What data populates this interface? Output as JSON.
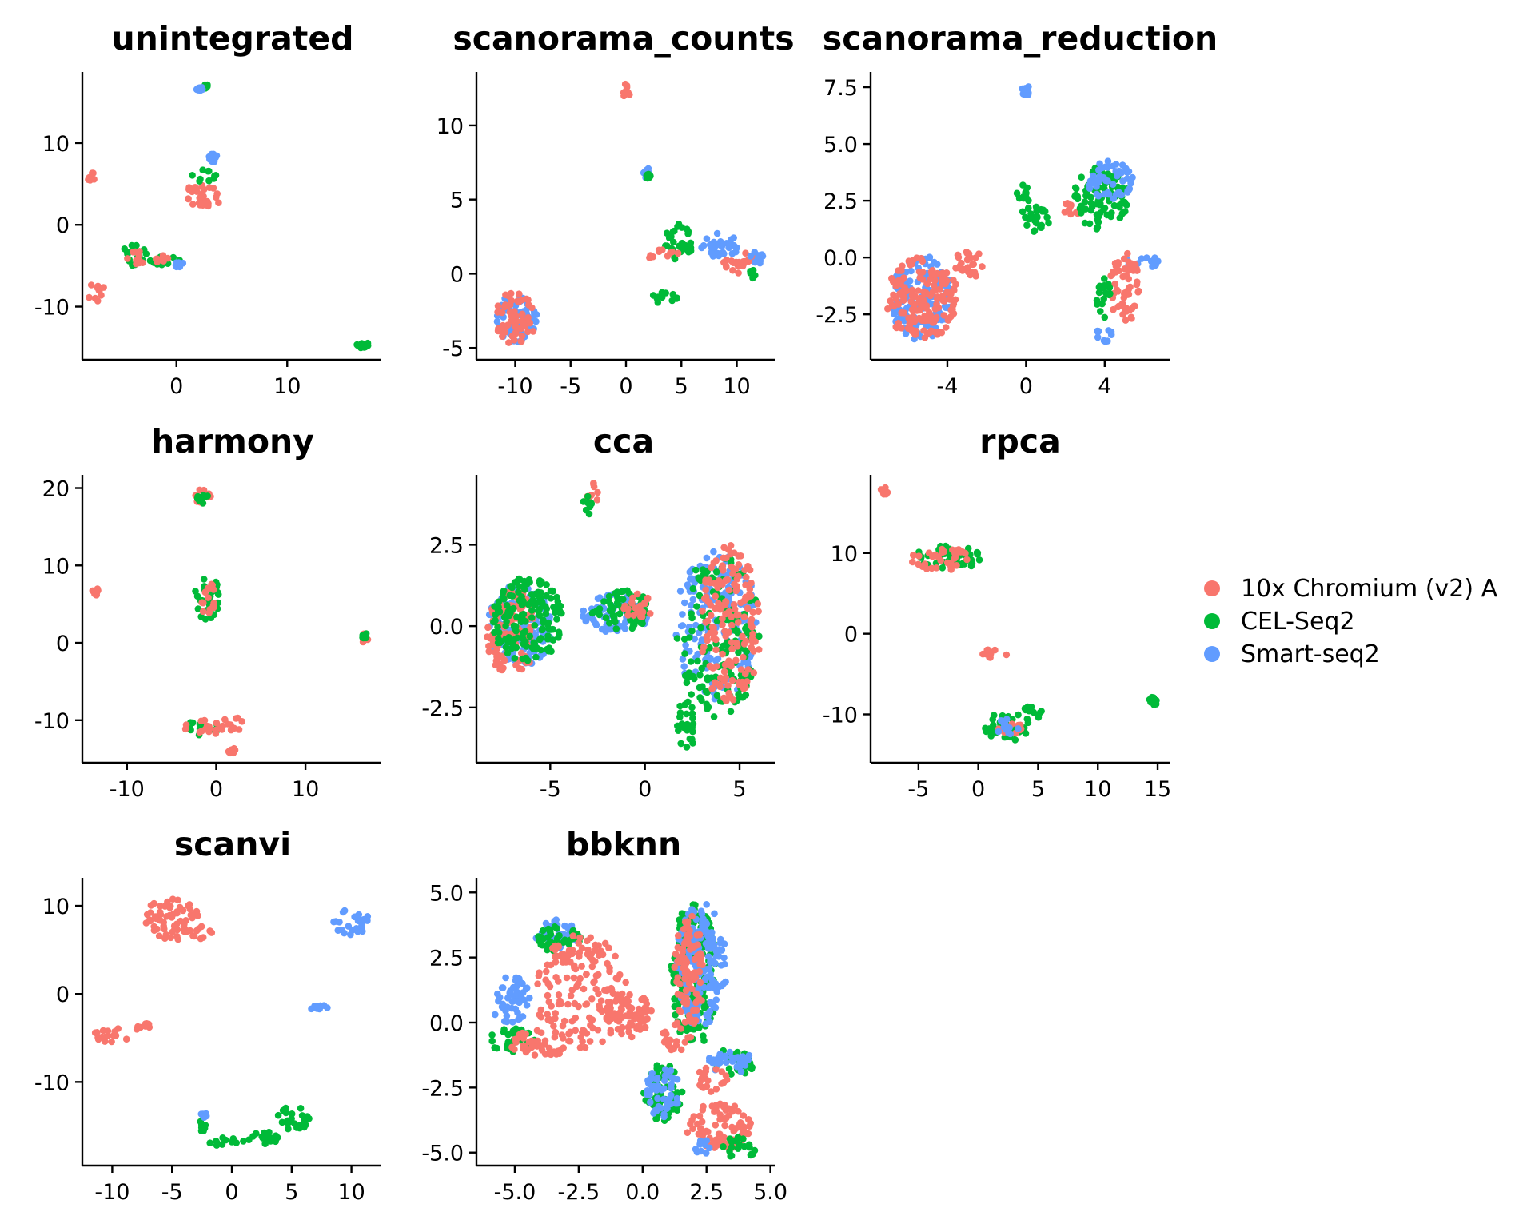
{
  "colors": {
    "10x Chromium (v2) A": "#F8766D",
    "CEL-Seq2": "#00BA38",
    "Smart-seq2": "#619CFF"
  },
  "legend": {
    "entries": [
      {
        "label": "10x Chromium (v2) A",
        "color": "#F8766D"
      },
      {
        "label": "CEL-Seq2",
        "color": "#00BA38"
      },
      {
        "label": "Smart-seq2",
        "color": "#619CFF"
      }
    ]
  },
  "chart_data": [
    {
      "type": "scatter",
      "title": "unintegrated",
      "xlim": [
        -8.5,
        18.5
      ],
      "ylim": [
        -16.5,
        18.5
      ],
      "xticks": [
        0,
        10
      ],
      "yticks": [
        10,
        0,
        -10
      ],
      "xtick_labels": [
        "0",
        "10"
      ],
      "ytick_labels": [
        "10",
        "0",
        "-10"
      ],
      "clusters": [
        {
          "series": "10x Chromium (v2) A",
          "cx": -7.7,
          "cy": 5.9,
          "rx": 0.4,
          "ry": 0.5
        },
        {
          "series": "10x Chromium (v2) A",
          "cx": 2.5,
          "cy": 3.6,
          "rx": 1.6,
          "ry": 2.0
        },
        {
          "series": "CEL-Seq2",
          "cx": 2.6,
          "cy": 6.0,
          "rx": 1.2,
          "ry": 0.8
        },
        {
          "series": "Smart-seq2",
          "cx": 3.3,
          "cy": 8.2,
          "rx": 0.4,
          "ry": 0.5
        },
        {
          "series": "CEL-Seq2",
          "cx": 2.8,
          "cy": 16.9,
          "rx": 0.6,
          "ry": 0.3
        },
        {
          "series": "Smart-seq2",
          "cx": 2.1,
          "cy": 16.6,
          "rx": 0.3,
          "ry": 0.3
        },
        {
          "series": "10x Chromium (v2) A",
          "cx": -7.2,
          "cy": -8.3,
          "rx": 0.8,
          "ry": 1.2
        },
        {
          "series": "CEL-Seq2",
          "cx": -3.6,
          "cy": -3.8,
          "rx": 1.4,
          "ry": 1.5
        },
        {
          "series": "CEL-Seq2",
          "cx": -1.0,
          "cy": -4.4,
          "rx": 1.6,
          "ry": 0.5
        },
        {
          "series": "10x Chromium (v2) A",
          "cx": -3.5,
          "cy": -4.0,
          "rx": 1.0,
          "ry": 0.8
        },
        {
          "series": "10x Chromium (v2) A",
          "cx": -1.2,
          "cy": -4.2,
          "rx": 0.8,
          "ry": 0.5
        },
        {
          "series": "Smart-seq2",
          "cx": 0.2,
          "cy": -4.8,
          "rx": 0.4,
          "ry": 0.4
        },
        {
          "series": "CEL-Seq2",
          "cx": 16.8,
          "cy": -14.7,
          "rx": 0.6,
          "ry": 0.4
        }
      ]
    },
    {
      "type": "scatter",
      "title": "scanorama_counts",
      "xlim": [
        -13.5,
        13.5
      ],
      "ylim": [
        -5.8,
        13.5
      ],
      "xticks": [
        -10,
        -5,
        0,
        5,
        10
      ],
      "yticks": [
        10,
        5,
        0,
        -5
      ],
      "xtick_labels": [
        "-10",
        "-5",
        "0",
        "5",
        "10"
      ],
      "ytick_labels": [
        "10",
        "5",
        "0",
        "-5"
      ],
      "clusters": [
        {
          "series": "Smart-seq2",
          "cx": -9.8,
          "cy": -3.0,
          "rx": 1.9,
          "ry": 1.7
        },
        {
          "series": "10x Chromium (v2) A",
          "cx": -10.0,
          "cy": -3.0,
          "rx": 1.9,
          "ry": 1.8
        },
        {
          "series": "10x Chromium (v2) A",
          "cx": 0.0,
          "cy": 12.4,
          "rx": 0.4,
          "ry": 0.5
        },
        {
          "series": "Smart-seq2",
          "cx": 1.9,
          "cy": 6.8,
          "rx": 0.3,
          "ry": 0.4
        },
        {
          "series": "CEL-Seq2",
          "cx": 2.0,
          "cy": 6.6,
          "rx": 0.2,
          "ry": 0.2
        },
        {
          "series": "CEL-Seq2",
          "cx": 4.8,
          "cy": 2.2,
          "rx": 1.3,
          "ry": 1.3
        },
        {
          "series": "Smart-seq2",
          "cx": 8.5,
          "cy": 1.9,
          "rx": 1.8,
          "ry": 0.9
        },
        {
          "series": "10x Chromium (v2) A",
          "cx": 3.3,
          "cy": 1.3,
          "rx": 1.5,
          "ry": 0.4
        },
        {
          "series": "10x Chromium (v2) A",
          "cx": 10.2,
          "cy": 0.8,
          "rx": 1.5,
          "ry": 0.8
        },
        {
          "series": "Smart-seq2",
          "cx": 11.8,
          "cy": 1.0,
          "rx": 0.7,
          "ry": 0.5
        },
        {
          "series": "CEL-Seq2",
          "cx": 3.6,
          "cy": -1.6,
          "rx": 1.6,
          "ry": 0.4
        },
        {
          "series": "CEL-Seq2",
          "cx": 11.4,
          "cy": 0.0,
          "rx": 0.3,
          "ry": 0.3
        }
      ]
    },
    {
      "type": "scatter",
      "title": "scanorama_reduction",
      "xlim": [
        -7.9,
        7.3
      ],
      "ylim": [
        -4.5,
        8.1
      ],
      "xticks": [
        -4,
        0,
        4
      ],
      "yticks": [
        7.5,
        5.0,
        2.5,
        0.0,
        -2.5
      ],
      "xtick_labels": [
        "-4",
        "0",
        "4"
      ],
      "ytick_labels": [
        "7.5",
        "5.0",
        "2.5",
        "0.0",
        "-2.5"
      ],
      "clusters": [
        {
          "series": "Smart-seq2",
          "cx": -5.3,
          "cy": -1.8,
          "rx": 1.6,
          "ry": 1.9
        },
        {
          "series": "10x Chromium (v2) A",
          "cx": -5.3,
          "cy": -1.8,
          "rx": 1.9,
          "ry": 1.8
        },
        {
          "series": "10x Chromium (v2) A",
          "cx": -2.8,
          "cy": -0.3,
          "rx": 1.0,
          "ry": 0.6
        },
        {
          "series": "CEL-Seq2",
          "cx": 0.4,
          "cy": 1.6,
          "rx": 0.8,
          "ry": 0.7
        },
        {
          "series": "CEL-Seq2",
          "cx": -0.1,
          "cy": 2.7,
          "rx": 0.4,
          "ry": 0.5
        },
        {
          "series": "Smart-seq2",
          "cx": 0.0,
          "cy": 7.35,
          "rx": 0.25,
          "ry": 0.2
        },
        {
          "series": "10x Chromium (v2) A",
          "cx": 2.3,
          "cy": 2.2,
          "rx": 0.7,
          "ry": 0.3
        },
        {
          "series": "CEL-Seq2",
          "cx": 3.8,
          "cy": 2.6,
          "rx": 1.4,
          "ry": 1.4
        },
        {
          "series": "Smart-seq2",
          "cx": 4.3,
          "cy": 3.4,
          "rx": 1.2,
          "ry": 0.9
        },
        {
          "series": "Smart-seq2",
          "cx": 6.0,
          "cy": -0.2,
          "rx": 0.9,
          "ry": 0.3
        },
        {
          "series": "10x Chromium (v2) A",
          "cx": 5.0,
          "cy": -1.3,
          "rx": 0.8,
          "ry": 1.6
        },
        {
          "series": "CEL-Seq2",
          "cx": 4.0,
          "cy": -1.8,
          "rx": 0.4,
          "ry": 0.9
        },
        {
          "series": "Smart-seq2",
          "cx": 4.0,
          "cy": -3.4,
          "rx": 0.5,
          "ry": 0.3
        }
      ]
    },
    {
      "type": "scatter",
      "title": "harmony",
      "xlim": [
        -15,
        18.5
      ],
      "ylim": [
        -15.5,
        21.5
      ],
      "xticks": [
        -10,
        0,
        10
      ],
      "yticks": [
        20,
        10,
        0,
        -10
      ],
      "xtick_labels": [
        "-10",
        "0",
        "10"
      ],
      "ytick_labels": [
        "20",
        "10",
        "0",
        "-10"
      ],
      "clusters": [
        {
          "series": "10x Chromium (v2) A",
          "cx": -1.5,
          "cy": 19.0,
          "rx": 1.0,
          "ry": 1.0
        },
        {
          "series": "CEL-Seq2",
          "cx": -1.5,
          "cy": 18.7,
          "rx": 0.6,
          "ry": 0.7
        },
        {
          "series": "CEL-Seq2",
          "cx": -1.0,
          "cy": 6.0,
          "rx": 1.4,
          "ry": 3.0
        },
        {
          "series": "10x Chromium (v2) A",
          "cx": -0.8,
          "cy": 5.5,
          "rx": 1.0,
          "ry": 2.2
        },
        {
          "series": "10x Chromium (v2) A",
          "cx": -13.5,
          "cy": 6.6,
          "rx": 0.4,
          "ry": 0.5
        },
        {
          "series": "10x Chromium (v2) A",
          "cx": 16.6,
          "cy": 0.6,
          "rx": 0.4,
          "ry": 0.7
        },
        {
          "series": "CEL-Seq2",
          "cx": 16.6,
          "cy": 0.9,
          "rx": 0.3,
          "ry": 0.4
        },
        {
          "series": "CEL-Seq2",
          "cx": -1.5,
          "cy": -11.0,
          "rx": 2.0,
          "ry": 1.0
        },
        {
          "series": "10x Chromium (v2) A",
          "cx": -1.5,
          "cy": -11.0,
          "rx": 2.2,
          "ry": 1.0
        },
        {
          "series": "10x Chromium (v2) A",
          "cx": 2.0,
          "cy": -10.5,
          "rx": 1.4,
          "ry": 0.9
        },
        {
          "series": "10x Chromium (v2) A",
          "cx": 1.8,
          "cy": -14.0,
          "rx": 0.4,
          "ry": 0.4
        }
      ]
    },
    {
      "type": "scatter",
      "title": "cca",
      "xlim": [
        -8.9,
        6.9
      ],
      "ylim": [
        -4.2,
        4.6
      ],
      "xticks": [
        -5,
        0,
        5
      ],
      "yticks": [
        2.5,
        0.0,
        -2.5
      ],
      "xtick_labels": [
        "-5",
        "0",
        "5"
      ],
      "ytick_labels": [
        "2.5",
        "0.0",
        "-2.5"
      ],
      "clusters": [
        {
          "series": "10x Chromium (v2) A",
          "cx": -2.7,
          "cy": 4.0,
          "rx": 0.35,
          "ry": 0.4
        },
        {
          "series": "CEL-Seq2",
          "cx": -3.0,
          "cy": 3.8,
          "rx": 0.25,
          "ry": 0.4
        },
        {
          "series": "Smart-seq2",
          "cx": -6.6,
          "cy": 0.0,
          "rx": 1.7,
          "ry": 1.3
        },
        {
          "series": "10x Chromium (v2) A",
          "cx": -7.0,
          "cy": -0.2,
          "rx": 1.4,
          "ry": 1.3
        },
        {
          "series": "CEL-Seq2",
          "cx": -6.2,
          "cy": 0.2,
          "rx": 1.9,
          "ry": 1.3
        },
        {
          "series": "Smart-seq2",
          "cx": -1.5,
          "cy": 0.4,
          "rx": 1.8,
          "ry": 0.6
        },
        {
          "series": "CEL-Seq2",
          "cx": -1.2,
          "cy": 0.5,
          "rx": 1.6,
          "ry": 0.6
        },
        {
          "series": "10x Chromium (v2) A",
          "cx": -0.4,
          "cy": 0.6,
          "rx": 0.8,
          "ry": 0.4
        },
        {
          "series": "Smart-seq2",
          "cx": 3.8,
          "cy": 0.0,
          "rx": 2.2,
          "ry": 2.3
        },
        {
          "series": "CEL-Seq2",
          "cx": 3.9,
          "cy": -0.3,
          "rx": 2.2,
          "ry": 2.5
        },
        {
          "series": "10x Chromium (v2) A",
          "cx": 4.5,
          "cy": 0.0,
          "rx": 1.6,
          "ry": 2.5
        },
        {
          "series": "CEL-Seq2",
          "cx": 2.2,
          "cy": -3.0,
          "rx": 0.5,
          "ry": 0.8
        }
      ]
    },
    {
      "type": "scatter",
      "title": "rpca",
      "xlim": [
        -9,
        16
      ],
      "ylim": [
        -16,
        19.5
      ],
      "xticks": [
        -5,
        0,
        5,
        10,
        15
      ],
      "yticks": [
        10,
        0,
        -10
      ],
      "xtick_labels": [
        "-5",
        "0",
        "5",
        "10",
        "15"
      ],
      "ytick_labels": [
        "10",
        "0",
        "-10"
      ],
      "clusters": [
        {
          "series": "10x Chromium (v2) A",
          "cx": -7.8,
          "cy": 17.7,
          "rx": 0.4,
          "ry": 0.5
        },
        {
          "series": "CEL-Seq2",
          "cx": -2.5,
          "cy": 9.5,
          "rx": 2.8,
          "ry": 1.6
        },
        {
          "series": "10x Chromium (v2) A",
          "cx": -3.2,
          "cy": 9.3,
          "rx": 2.4,
          "ry": 1.5
        },
        {
          "series": "10x Chromium (v2) A",
          "cx": 1.1,
          "cy": -2.5,
          "rx": 1.3,
          "ry": 0.7
        },
        {
          "series": "CEL-Seq2",
          "cx": 2.5,
          "cy": -11.5,
          "rx": 2.0,
          "ry": 1.8
        },
        {
          "series": "CEL-Seq2",
          "cx": 4.5,
          "cy": -9.8,
          "rx": 0.8,
          "ry": 0.9
        },
        {
          "series": "10x Chromium (v2) A",
          "cx": 2.6,
          "cy": -11.6,
          "rx": 1.1,
          "ry": 1.0
        },
        {
          "series": "Smart-seq2",
          "cx": 2.5,
          "cy": -11.5,
          "rx": 1.0,
          "ry": 1.2
        },
        {
          "series": "CEL-Seq2",
          "cx": 14.7,
          "cy": -8.3,
          "rx": 0.4,
          "ry": 0.6
        }
      ]
    },
    {
      "type": "scatter",
      "title": "scanvi",
      "xlim": [
        -12.5,
        12.5
      ],
      "ylim": [
        -19.5,
        13
      ],
      "xticks": [
        -10,
        -5,
        0,
        5,
        10
      ],
      "yticks": [
        10,
        0,
        -10
      ],
      "xtick_labels": [
        "-10",
        "-5",
        "0",
        "5",
        "10"
      ],
      "ytick_labels": [
        "10",
        "0",
        "-10"
      ],
      "clusters": [
        {
          "series": "10x Chromium (v2) A",
          "cx": -5.0,
          "cy": 8.5,
          "rx": 2.2,
          "ry": 2.6
        },
        {
          "series": "10x Chromium (v2) A",
          "cx": -2.5,
          "cy": 7.0,
          "rx": 1.0,
          "ry": 0.8
        },
        {
          "series": "Smart-seq2",
          "cx": 10.0,
          "cy": 8.2,
          "rx": 1.5,
          "ry": 1.5
        },
        {
          "series": "Smart-seq2",
          "cx": 7.3,
          "cy": -1.6,
          "rx": 0.7,
          "ry": 0.5
        },
        {
          "series": "10x Chromium (v2) A",
          "cx": -10.0,
          "cy": -4.6,
          "rx": 1.6,
          "ry": 0.9
        },
        {
          "series": "10x Chromium (v2) A",
          "cx": -7.5,
          "cy": -3.7,
          "rx": 0.8,
          "ry": 0.4
        },
        {
          "series": "CEL-Seq2",
          "cx": 5.2,
          "cy": -14.0,
          "rx": 1.4,
          "ry": 1.5
        },
        {
          "series": "CEL-Seq2",
          "cx": 2.5,
          "cy": -16.5,
          "rx": 1.6,
          "ry": 0.9
        },
        {
          "series": "CEL-Seq2",
          "cx": -0.5,
          "cy": -16.8,
          "rx": 1.5,
          "ry": 0.5
        },
        {
          "series": "CEL-Seq2",
          "cx": -2.4,
          "cy": -15.0,
          "rx": 0.4,
          "ry": 0.6
        },
        {
          "series": "Smart-seq2",
          "cx": -2.3,
          "cy": -13.8,
          "rx": 0.3,
          "ry": 0.3
        }
      ]
    },
    {
      "type": "scatter",
      "title": "bbknn",
      "xlim": [
        -6.5,
        5.2
      ],
      "ylim": [
        -5.5,
        5.5
      ],
      "xticks": [
        -5.0,
        -2.5,
        0.0,
        2.5,
        5.0
      ],
      "yticks": [
        5.0,
        2.5,
        0.0,
        -2.5,
        -5.0
      ],
      "xtick_labels": [
        "-5.0",
        "-2.5",
        "0.0",
        "2.5",
        "5.0"
      ],
      "ytick_labels": [
        "5.0",
        "2.5",
        "0.0",
        "-2.5",
        "-5.0"
      ],
      "clusters": [
        {
          "series": "Smart-seq2",
          "cx": -3.3,
          "cy": 3.4,
          "rx": 0.9,
          "ry": 0.6
        },
        {
          "series": "CEL-Seq2",
          "cx": -3.3,
          "cy": 3.1,
          "rx": 0.9,
          "ry": 0.6
        },
        {
          "series": "10x Chromium (v2) A",
          "cx": -2.4,
          "cy": 1.2,
          "rx": 1.8,
          "ry": 2.2
        },
        {
          "series": "10x Chromium (v2) A",
          "cx": -0.5,
          "cy": 0.3,
          "rx": 0.9,
          "ry": 0.9
        },
        {
          "series": "Smart-seq2",
          "cx": -5.2,
          "cy": 0.9,
          "rx": 0.8,
          "ry": 0.9
        },
        {
          "series": "CEL-Seq2",
          "cx": -5.1,
          "cy": -0.7,
          "rx": 0.9,
          "ry": 0.5
        },
        {
          "series": "10x Chromium (v2) A",
          "cx": -4.0,
          "cy": -0.8,
          "rx": 1.2,
          "ry": 0.5
        },
        {
          "series": "CEL-Seq2",
          "cx": 2.0,
          "cy": 1.8,
          "rx": 0.9,
          "ry": 2.8
        },
        {
          "series": "Smart-seq2",
          "cx": 2.3,
          "cy": 2.2,
          "rx": 1.0,
          "ry": 2.4
        },
        {
          "series": "10x Chromium (v2) A",
          "cx": 1.8,
          "cy": 2.0,
          "rx": 0.6,
          "ry": 2.2
        },
        {
          "series": "CEL-Seq2",
          "cx": 3.6,
          "cy": -1.5,
          "rx": 0.9,
          "ry": 0.5
        },
        {
          "series": "Smart-seq2",
          "cx": 3.4,
          "cy": -1.5,
          "rx": 0.9,
          "ry": 0.5
        },
        {
          "series": "CEL-Seq2",
          "cx": 0.8,
          "cy": -2.7,
          "rx": 0.8,
          "ry": 1.1
        },
        {
          "series": "Smart-seq2",
          "cx": 0.8,
          "cy": -2.7,
          "rx": 0.7,
          "ry": 1.0
        },
        {
          "series": "10x Chromium (v2) A",
          "cx": 1.3,
          "cy": -0.6,
          "rx": 0.6,
          "ry": 0.6
        },
        {
          "series": "10x Chromium (v2) A",
          "cx": 2.7,
          "cy": -2.2,
          "rx": 0.6,
          "ry": 0.5
        },
        {
          "series": "10x Chromium (v2) A",
          "cx": 3.0,
          "cy": -4.0,
          "rx": 1.3,
          "ry": 0.9
        },
        {
          "series": "CEL-Seq2",
          "cx": 3.8,
          "cy": -4.8,
          "rx": 0.7,
          "ry": 0.4
        },
        {
          "series": "Smart-seq2",
          "cx": 2.4,
          "cy": -4.8,
          "rx": 0.4,
          "ry": 0.3
        }
      ]
    }
  ]
}
